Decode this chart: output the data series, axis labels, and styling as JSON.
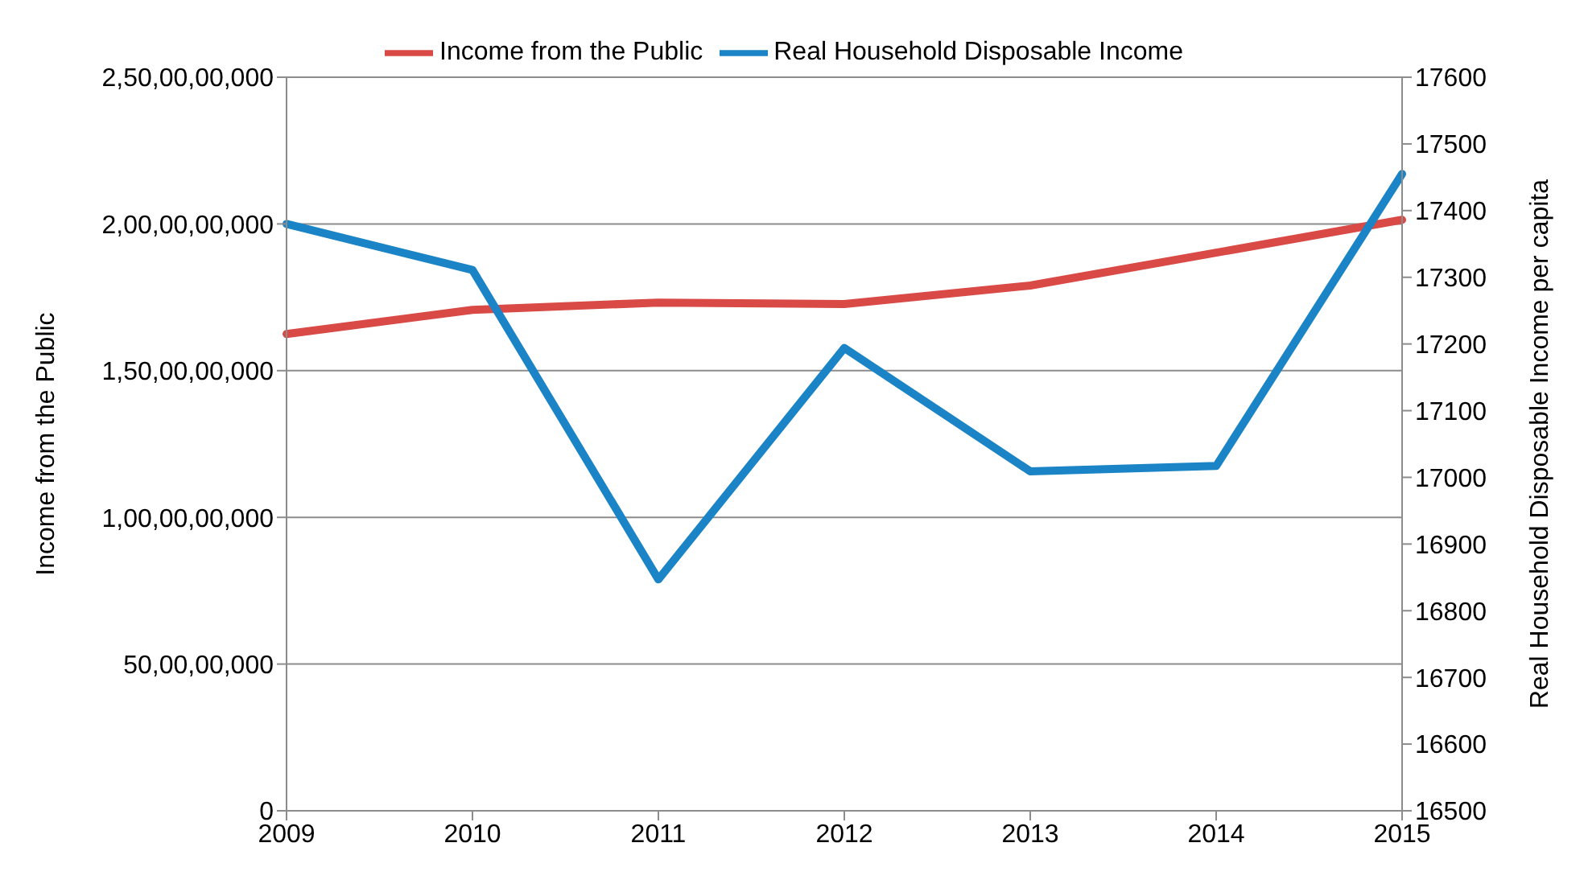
{
  "chart_data": {
    "type": "line",
    "categories": [
      "2009",
      "2010",
      "2011",
      "2012",
      "2013",
      "2014",
      "2015"
    ],
    "series": [
      {
        "name": "Income from the Public",
        "color": "#d94a46",
        "values": [
          1625000000,
          1707000000,
          1732000000,
          1727000000,
          1790000000,
          1902000000,
          2014000000
        ]
      },
      {
        "name": "Real Household Disposable Income",
        "color": "#1a84c6",
        "axis": "y2",
        "values": [
          17380,
          17311,
          16847,
          17194,
          17009,
          17017,
          17455
        ]
      }
    ],
    "ylabel": "Income from the Public",
    "y2label": "Real Household Disposable Income per capita",
    "ylim": [
      0,
      2500000000
    ],
    "yticks": [
      0,
      {
        "value": 500000000,
        "label": "50,00,00,000"
      },
      {
        "value": 1000000000,
        "label": "1,00,00,00,000"
      },
      {
        "value": 1500000000,
        "label": "1,50,00,00,000"
      },
      {
        "value": 2000000000,
        "label": "2,00,00,00,000"
      },
      {
        "value": 2500000000,
        "label": "2,50,00,00,000"
      }
    ],
    "y2lim": [
      16500,
      17600
    ],
    "y2ticks": [
      16500,
      16600,
      16700,
      16800,
      16900,
      17000,
      17100,
      17200,
      17300,
      17400,
      17500,
      17600
    ],
    "grid": "y",
    "legend": "top",
    "marker": "none",
    "line_style": "solid"
  }
}
